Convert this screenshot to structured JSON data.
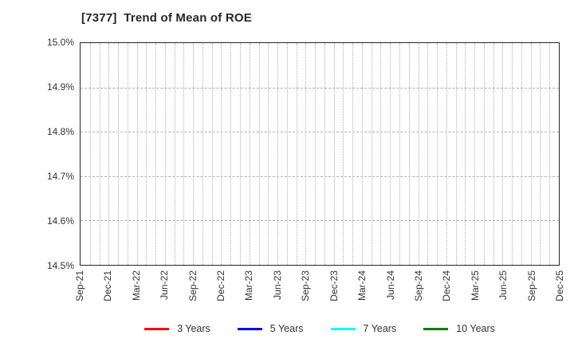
{
  "chart_data": {
    "type": "line",
    "title": "[7377]  Trend of Mean of ROE",
    "x_tick_labels": [
      "Sep-21",
      "Dec-21",
      "Mar-22",
      "Jun-22",
      "Sep-22",
      "Dec-22",
      "Mar-23",
      "Jun-23",
      "Sep-23",
      "Dec-23",
      "Mar-24",
      "Jun-24",
      "Sep-24",
      "Dec-24",
      "Mar-25",
      "Jun-25",
      "Sep-25",
      "Dec-25"
    ],
    "x_months_between_labeled_ticks": 3,
    "x_total_month_intervals": 51,
    "y_tick_labels": [
      "15.0%",
      "14.9%",
      "14.8%",
      "14.7%",
      "14.6%",
      "14.5%"
    ],
    "y_tick_values": [
      15.0,
      14.9,
      14.8,
      14.7,
      14.6,
      14.5
    ],
    "ylim": [
      14.5,
      15.0
    ],
    "y_gridline_values": [
      14.9,
      14.8,
      14.7,
      14.6
    ],
    "grid": {
      "vertical_style": "dotted-monthly",
      "horizontal_style": "dashed",
      "color": "#b0b0b0"
    },
    "legend_position": "bottom-center",
    "series": [
      {
        "name": "3 Years",
        "color": "#ff0000",
        "values": []
      },
      {
        "name": "5 Years",
        "color": "#0000ff",
        "values": []
      },
      {
        "name": "7 Years",
        "color": "#00ffff",
        "values": []
      },
      {
        "name": "10 Years",
        "color": "#008000",
        "values": []
      }
    ],
    "plot_empty": true
  }
}
